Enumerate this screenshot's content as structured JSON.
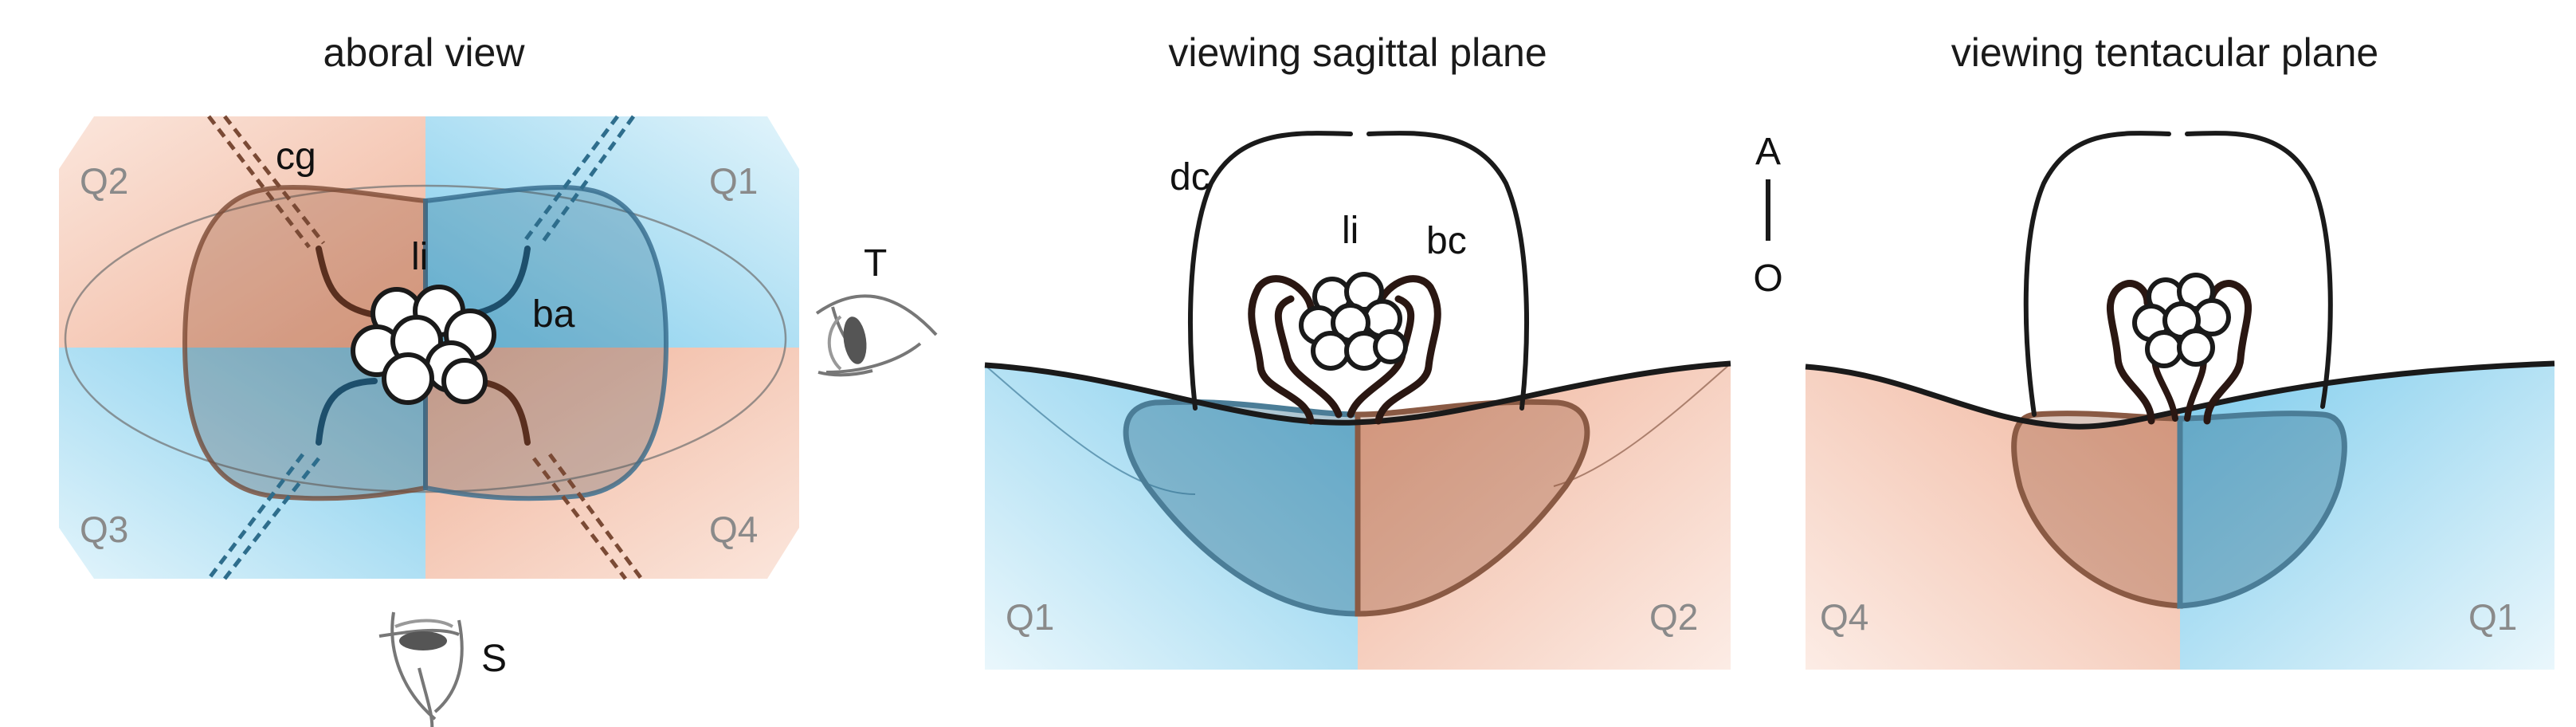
{
  "panels": {
    "aboral": {
      "title": "aboral view",
      "quadrants": [
        "Q1",
        "Q2",
        "Q3",
        "Q4"
      ],
      "labels": {
        "cg": "cg",
        "li": "li",
        "ba": "ba"
      },
      "eye_labels": {
        "tentacular": "T",
        "sagittal": "S"
      }
    },
    "sagittal": {
      "title": "viewing sagittal plane",
      "quadrants": [
        "Q1",
        "Q2"
      ],
      "labels": {
        "dc": "dc",
        "li": "li",
        "bc": "bc"
      }
    },
    "tentacular": {
      "title": "viewing tentacular plane",
      "quadrants": [
        "Q4",
        "Q1"
      ]
    }
  },
  "axis": {
    "top": "A",
    "bottom": "O"
  },
  "colors": {
    "blue": "#7ccbec",
    "orange": "#f0b39a",
    "dark_blue": "#2e6d8c",
    "dark_brown": "#5a2f1f",
    "quadrant_label": "#8a8a8a",
    "outline": "#1a1a1a"
  },
  "icons": [
    "eye-icon-tentacular",
    "eye-icon-sagittal"
  ]
}
